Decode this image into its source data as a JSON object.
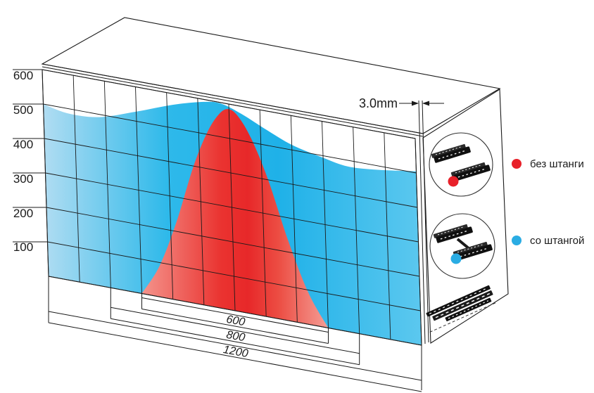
{
  "chart_data": {
    "type": "area",
    "title": "",
    "x_unit": "mm",
    "xlim": [
      0,
      1200
    ],
    "ylim": [
      0,
      600
    ],
    "x_gridline_step": 100,
    "y_gridline_step": 100,
    "grid": "on",
    "y_ticks": [
      "600",
      "500",
      "400",
      "300",
      "200",
      "100"
    ],
    "series": [
      {
        "name": "со штангой",
        "color": "#2aace3",
        "points": [
          [
            0,
            500
          ],
          [
            80,
            486
          ],
          [
            180,
            492
          ],
          [
            300,
            528
          ],
          [
            420,
            568
          ],
          [
            520,
            593
          ],
          [
            575,
            597
          ],
          [
            640,
            578
          ],
          [
            720,
            545
          ],
          [
            800,
            515
          ],
          [
            900,
            494
          ],
          [
            980,
            482
          ],
          [
            1080,
            489
          ],
          [
            1200,
            505
          ]
        ]
      },
      {
        "name": "без штанги",
        "color": "#e8212a",
        "points": [
          [
            300,
            0
          ],
          [
            360,
            90
          ],
          [
            420,
            230
          ],
          [
            480,
            400
          ],
          [
            530,
            510
          ],
          [
            570,
            568
          ],
          [
            600,
            585
          ],
          [
            630,
            568
          ],
          [
            670,
            510
          ],
          [
            720,
            400
          ],
          [
            780,
            230
          ],
          [
            840,
            90
          ],
          [
            900,
            0
          ]
        ]
      }
    ],
    "width_dims": [
      {
        "label": "600",
        "from_mm": 300,
        "to_mm": 900
      },
      {
        "label": "800",
        "from_mm": 200,
        "to_mm": 1000
      },
      {
        "label": "1200",
        "from_mm": 0,
        "to_mm": 1200
      }
    ]
  },
  "annotations": {
    "gap_label": "3.0mm"
  },
  "legend": {
    "items": [
      {
        "label": "без штанги",
        "color": "#e8212a"
      },
      {
        "label": "со штангой",
        "color": "#2aace3"
      }
    ]
  }
}
